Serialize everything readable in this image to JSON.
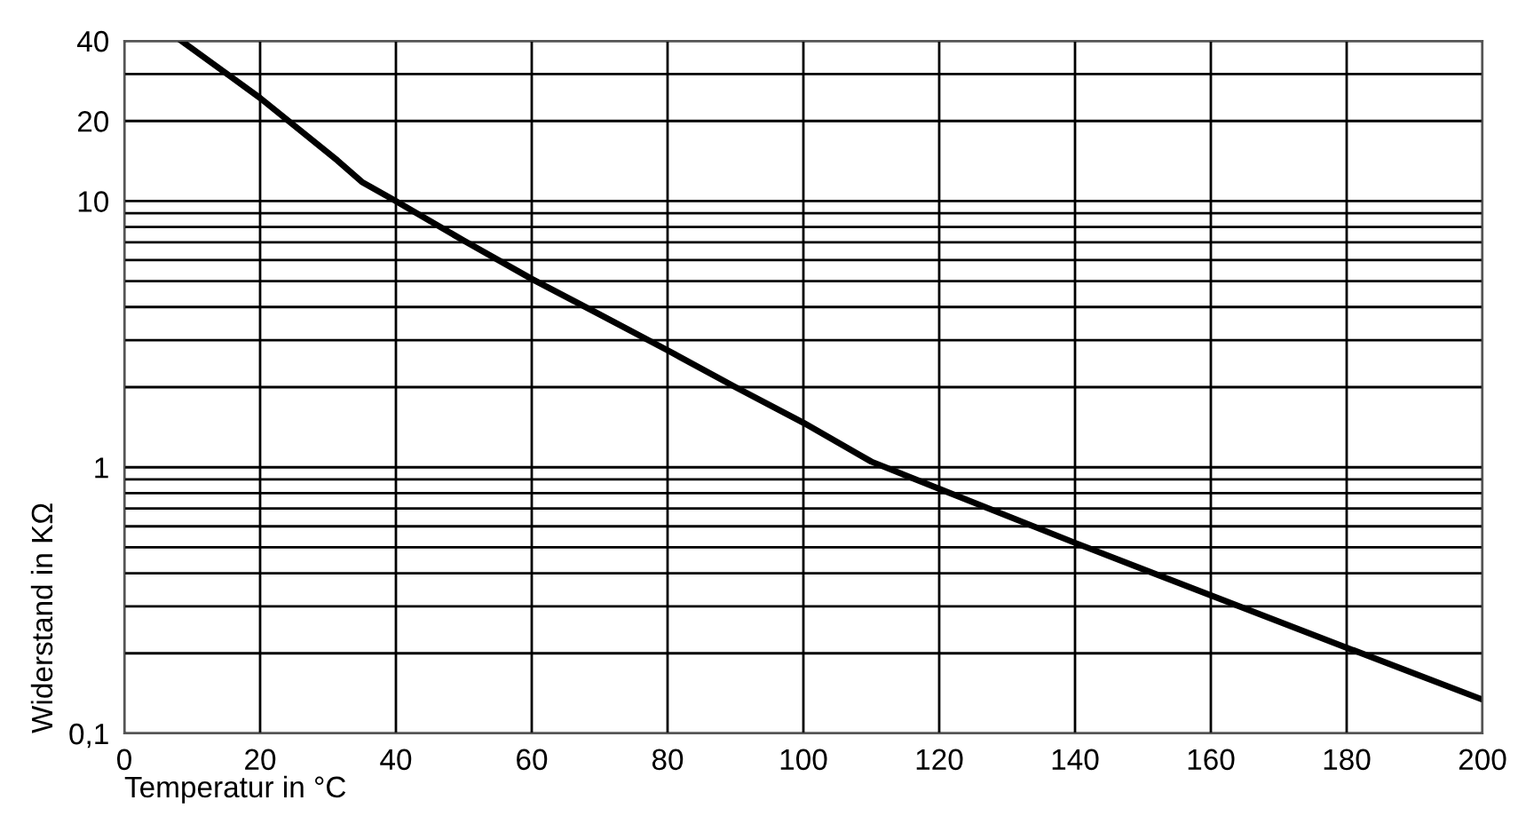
{
  "chart_data": {
    "type": "line",
    "xlabel": "Temperatur in °C",
    "ylabel": "Widerstand in KΩ",
    "log": "y",
    "grid": true,
    "marker": "none",
    "line_style": "solid",
    "x": [
      8.4,
      20,
      31.4,
      35,
      40,
      50,
      60,
      70,
      80,
      90,
      100,
      110,
      120,
      140,
      160,
      180,
      200
    ],
    "series": [
      {
        "color": "#000000",
        "values": [
          40,
          24.4,
          14.2,
          11.8,
          10,
          7.1,
          5.1,
          3.75,
          2.75,
          2.0,
          1.47,
          1.05,
          0.83,
          0.52,
          0.33,
          0.21,
          0.134
        ]
      }
    ],
    "xlim": [
      0,
      200
    ],
    "xticks": [
      0,
      20,
      40,
      60,
      80,
      100,
      120,
      140,
      160,
      180,
      200
    ],
    "ylim": [
      0.1,
      40
    ],
    "yticks": [
      {
        "value": 0.1,
        "label": "0,1"
      },
      {
        "value": 0.2,
        "label": null
      },
      {
        "value": 0.3,
        "label": null
      },
      {
        "value": 0.4,
        "label": null
      },
      {
        "value": 0.5,
        "label": null
      },
      {
        "value": 0.6,
        "label": null
      },
      {
        "value": 0.7,
        "label": null
      },
      {
        "value": 0.8,
        "label": null
      },
      {
        "value": 0.9,
        "label": null
      },
      1,
      {
        "value": 2,
        "label": null
      },
      {
        "value": 3,
        "label": null
      },
      {
        "value": 4,
        "label": null
      },
      {
        "value": 5,
        "label": null
      },
      {
        "value": 6,
        "label": null
      },
      {
        "value": 7,
        "label": null
      },
      {
        "value": 8,
        "label": null
      },
      {
        "value": 9,
        "label": null
      },
      10,
      20,
      {
        "value": 30,
        "label": null
      },
      40
    ]
  }
}
